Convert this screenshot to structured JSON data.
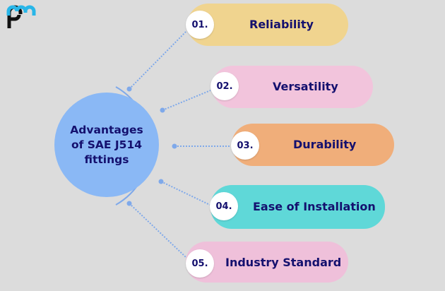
{
  "logo": {
    "text": "pm",
    "colors": [
      "#29b6e8",
      "#111111"
    ]
  },
  "center": {
    "title": "Advantages of SAE J514 fittings",
    "color": "#8ab8f5"
  },
  "items": [
    {
      "num": "01.",
      "label": "Reliability",
      "color": "#f0d48f"
    },
    {
      "num": "02.",
      "label": "Versatility",
      "color": "#f2c4dc"
    },
    {
      "num": "03.",
      "label": "Durability",
      "color": "#f0ae7a"
    },
    {
      "num": "04.",
      "label": "Ease of Installation",
      "color": "#5fd8d8"
    },
    {
      "num": "05.",
      "label": "Industry Standard",
      "color": "#efc0da"
    }
  ],
  "line_color": "#7fa9ea"
}
